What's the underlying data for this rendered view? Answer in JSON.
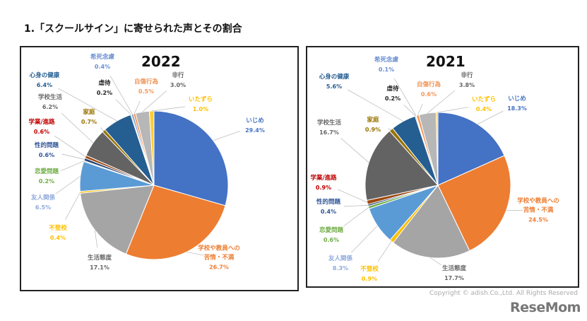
{
  "title": "1.「スクールサイン」に寄せられた声とその割合",
  "copyright": "Copyright © adish.Co.,Ltd. All Rights Reserved",
  "logo": "ReseMom",
  "chart_data": [
    {
      "type": "pie",
      "title": "2022",
      "categories": [
        "いじめ",
        "学校や教員への苦情・不満",
        "生活態度",
        "不登校",
        "友人関係",
        "恋愛問題",
        "性的問題",
        "学業/進路",
        "学校生活",
        "家庭",
        "心身の健康",
        "虐待",
        "希死念慮",
        "自傷行為",
        "非行",
        "いたずら"
      ],
      "values": [
        29.4,
        26.7,
        17.1,
        0.4,
        6.5,
        0.2,
        0.6,
        0.6,
        6.2,
        0.7,
        6.4,
        0.2,
        0.4,
        0.5,
        3.0,
        1.0
      ],
      "value_labels": [
        "29.4%",
        "26.7%",
        "17.1%",
        "0.4%",
        "6.5%",
        "0.2%",
        "0.6%",
        "0.6%",
        "6.2%",
        "0.7%",
        "6.4%",
        "0.2%",
        "0.4%",
        "0.5%",
        "3.0%",
        "1.0%"
      ]
    },
    {
      "type": "pie",
      "title": "2021",
      "categories": [
        "いじめ",
        "学校や教員への苦情・不満",
        "生活態度",
        "不登校",
        "友人関係",
        "恋愛問題",
        "性的問題",
        "学業/進路",
        "学校生活",
        "家庭",
        "心身の健康",
        "虐待",
        "希死念慮",
        "自傷行為",
        "非行",
        "いたずら"
      ],
      "values": [
        18.3,
        24.5,
        17.7,
        0.9,
        8.3,
        0.6,
        0.4,
        0.9,
        16.7,
        0.9,
        5.6,
        0.2,
        0.1,
        0.6,
        3.8,
        0.4
      ],
      "value_labels": [
        "18.3%",
        "24.5%",
        "17.7%",
        "0.9%",
        "8.3%",
        "0.6%",
        "0.4%",
        "0.9%",
        "16.7%",
        "0.9%",
        "5.6%",
        "0.2%",
        "0.1%",
        "0.6%",
        "3.8%",
        "0.4%"
      ]
    }
  ],
  "slice_colors": [
    "#4472c4",
    "#ed7d31",
    "#a5a5a5",
    "#ffc000",
    "#5b9bd5",
    "#70ad47",
    "#264478",
    "#9e480e",
    "#636363",
    "#997300",
    "#255e91",
    "#43682b",
    "#698ed0",
    "#f1975a",
    "#b7b7b7",
    "#ffcd33"
  ],
  "label_colors": [
    "#4472c4",
    "#ed7d31",
    "#666666",
    "#ffc000",
    "#8faadc",
    "#70ad47",
    "#2f5597",
    "#c00000",
    "#666666",
    "#997300",
    "#255e91",
    "#222222",
    "#698ed0",
    "#f1975a",
    "#666666",
    "#ffc000"
  ]
}
